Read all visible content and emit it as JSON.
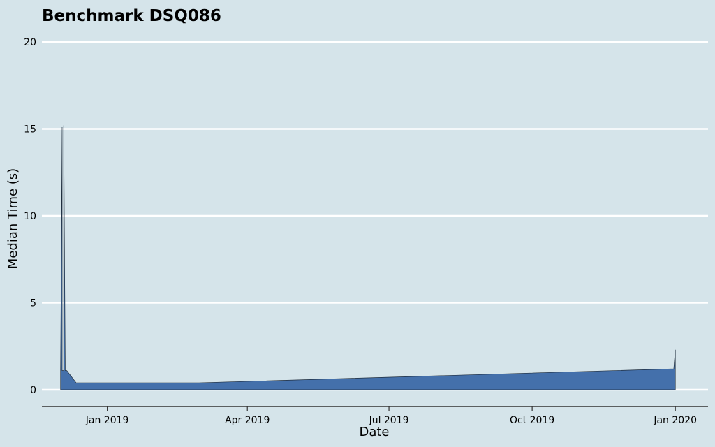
{
  "chart_data": {
    "type": "area",
    "title": "Benchmark DSQ086",
    "xlabel": "Date",
    "ylabel": "Median Time (s)",
    "ylim": [
      0,
      20
    ],
    "y_ticks": [
      0,
      5,
      10,
      15,
      20
    ],
    "x_ticks": [
      {
        "date": "2019-01-01",
        "label": "Jan 2019"
      },
      {
        "date": "2019-04-01",
        "label": "Apr 2019"
      },
      {
        "date": "2019-07-01",
        "label": "Jul 2019"
      },
      {
        "date": "2019-10-01",
        "label": "Oct 2019"
      },
      {
        "date": "2020-01-01",
        "label": "Jan 2020"
      }
    ],
    "xlim": [
      "2018-11-20",
      "2020-01-22"
    ],
    "grid": "y",
    "series": [
      {
        "color": "#4470ab",
        "points": [
          {
            "x": "2018-12-02",
            "y": 1.1
          },
          {
            "x": "2018-12-03",
            "y": 15.1
          },
          {
            "x": "2018-12-03",
            "y": 1.1
          },
          {
            "x": "2018-12-04",
            "y": 1.1
          },
          {
            "x": "2018-12-04",
            "y": 15.2
          },
          {
            "x": "2018-12-05",
            "y": 1.1
          },
          {
            "x": "2018-12-06",
            "y": 1.1
          },
          {
            "x": "2018-12-12",
            "y": 0.4
          },
          {
            "x": "2019-03-01",
            "y": 0.4
          },
          {
            "x": "2019-12-31",
            "y": 1.2
          },
          {
            "x": "2020-01-01",
            "y": 2.3
          },
          {
            "x": "2020-01-01",
            "y": 0.0
          }
        ]
      }
    ]
  }
}
